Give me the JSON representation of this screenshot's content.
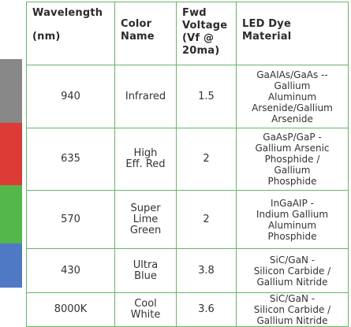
{
  "colors": {
    "border": "#6ab46a",
    "infrared_band": "#878787",
    "red_band": "#dd3b36",
    "green_band": "#53b74a",
    "blue_band": "#4f79c5"
  },
  "table": {
    "headers": {
      "wavelength": "Wavelength",
      "wavelength_unit": "(nm)",
      "color_name": "Color\nName",
      "fwd_voltage": "Fwd\nVoltage\n(Vf @\n20ma)",
      "dye_material": "LED Dye\nMaterial"
    },
    "rows": [
      {
        "wavelength": "940",
        "color": "Infrared",
        "voltage": "1.5",
        "material": "GaAIAs/GaAs --\nGallium\nAluminum\nArsenide/Gallium\nArsenide",
        "band_color": "#878787"
      },
      {
        "wavelength": "635",
        "color": "High\nEff. Red",
        "voltage": "2",
        "material": "GaAsP/GaP -\nGallium Arsenic\nPhosphide /\nGallium\nPhosphide",
        "band_color": "#dd3b36"
      },
      {
        "wavelength": "570",
        "color": "Super\nLime\nGreen",
        "voltage": "2",
        "material": "InGaAIP -\nIndium Gallium\nAluminum\nPhosphide",
        "band_color": "#53b74a"
      },
      {
        "wavelength": "430",
        "color": "Ultra\nBlue",
        "voltage": "3.8",
        "material": "SiC/GaN -\nSilicon Carbide /\nGallium Nitride",
        "band_color": "#4f79c5"
      },
      {
        "wavelength": "8000K",
        "color": "Cool\nWhite",
        "voltage": "3.6",
        "material": "SiC/GaN -\nSilicon Carbide /\nGallium Nitride",
        "band_color": "#ffffff"
      }
    ]
  }
}
